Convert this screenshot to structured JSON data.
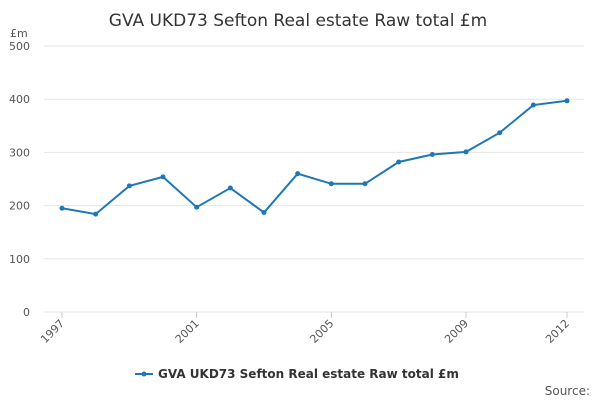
{
  "chart_data": {
    "type": "line",
    "title": "GVA UKD73 Sefton Real estate Raw total £m",
    "ylabel": "£m",
    "xlabel": "",
    "x": [
      1997,
      1998,
      1999,
      2000,
      2001,
      2002,
      2003,
      2004,
      2005,
      2006,
      2007,
      2008,
      2009,
      2010,
      2011,
      2012
    ],
    "x_ticks": [
      "1997",
      "2001",
      "2005",
      "2009",
      "2012"
    ],
    "y_ticks": [
      0,
      100,
      200,
      300,
      400,
      500
    ],
    "ylim": [
      0,
      500
    ],
    "grid": true,
    "legend_position": "bottom",
    "series": [
      {
        "name": "GVA UKD73 Sefton Real estate Raw total £m",
        "color": "#1f78b4",
        "values": [
          195,
          184,
          237,
          254,
          197,
          233,
          187,
          260,
          241,
          241,
          282,
          296,
          301,
          337,
          389,
          397
        ]
      }
    ],
    "source_label": "Source:"
  }
}
